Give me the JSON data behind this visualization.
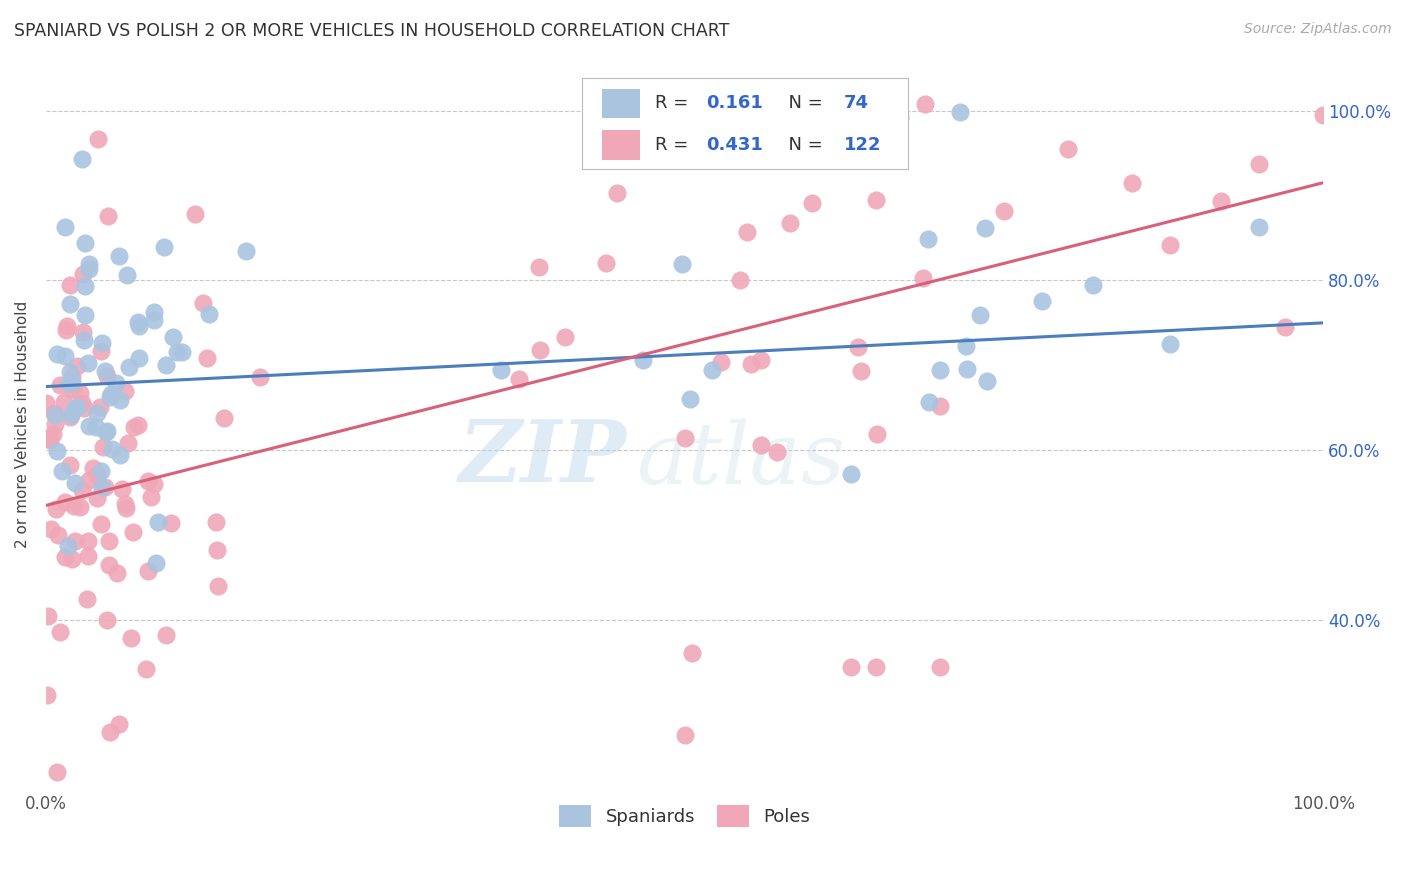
{
  "title": "SPANIARD VS POLISH 2 OR MORE VEHICLES IN HOUSEHOLD CORRELATION CHART",
  "source": "Source: ZipAtlas.com",
  "ylabel": "2 or more Vehicles in Household",
  "watermark_zip": "ZIP",
  "watermark_atlas": "atlas",
  "legend_spaniards": "Spaniards",
  "legend_poles": "Poles",
  "R_spaniards": 0.161,
  "N_spaniards": 74,
  "R_poles": 0.431,
  "N_poles": 122,
  "color_spaniards": "#aac4e0",
  "color_poles": "#f0a8b8",
  "line_color_spaniards": "#4a7ebf",
  "line_color_poles": "#d9607a",
  "xlim": [
    0.0,
    1.0
  ],
  "ylim": [
    0.2,
    1.06
  ],
  "background_color": "#ffffff",
  "grid_color": "#c8c8c8"
}
